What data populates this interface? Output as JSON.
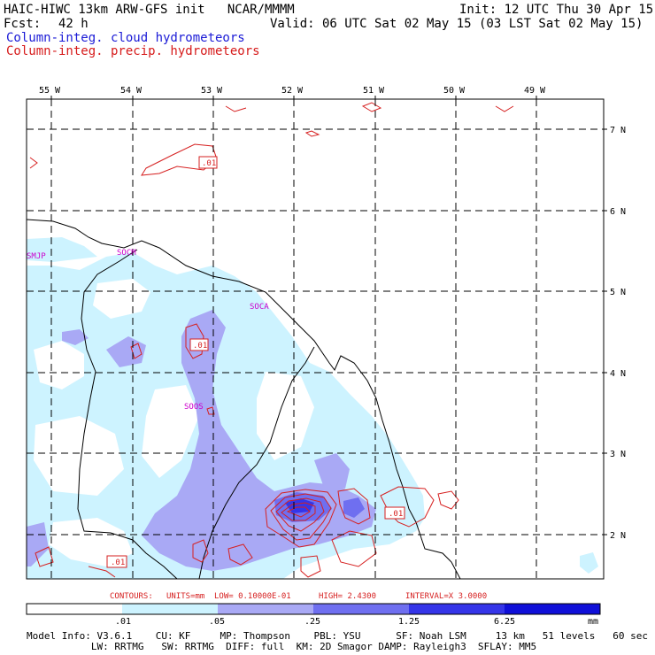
{
  "header": {
    "title": "HAIC-HIWC 13km ARW-GFS init   NCAR/MMMM",
    "init": "Init: 12 UTC Thu 30 Apr 15",
    "fcst_label": "Fcst:",
    "fcst_value": "42 h",
    "valid": "Valid: 06 UTC Sat 02 May 15 (03 LST Sat 02 May 15)",
    "field_cloud": "Column-integ. cloud hydrometeors",
    "field_precip": "Column-integ. precip. hydrometeors"
  },
  "map": {
    "lon_labels": [
      "55 W",
      "54 W",
      "53 W",
      "52 W",
      "51 W",
      "50 W",
      "49 W"
    ],
    "lat_labels": [
      "7 N",
      "6 N",
      "5 N",
      "4 N",
      "3 N",
      "2 N"
    ],
    "stations": [
      "SMJP",
      "SOCM",
      "SOCA",
      "SOOS"
    ],
    "contour_labels": [
      ".01",
      ".01",
      ".01",
      ".01"
    ]
  },
  "contours_info": {
    "contours": "CONTOURS:",
    "units": "UNITS=mm",
    "low": "LOW= 0.10000E-01",
    "high": "HIGH=   2.4300",
    "interval": "INTERVAL=X  3.0000"
  },
  "colorbar": {
    "ticks": [
      ".01",
      ".05",
      ".25",
      "1.25",
      "6.25"
    ],
    "unit": "mm",
    "colors": [
      "#ffffff",
      "#cdf3ff",
      "#a9a9f5",
      "#6f6ff0",
      "#3535e8",
      "#0f0fd8"
    ]
  },
  "footer": {
    "line1": "Model Info: V3.6.1    CU: KF     MP: Thompson    PBL: YSU      SF: Noah LSM     13 km   51 levels   60 sec",
    "line2": "           LW: RRTMG   SW: RRTMG  DIFF: full  KM: 2D Smagor DAMP: Rayleigh3  SFLAY: MM5"
  }
}
